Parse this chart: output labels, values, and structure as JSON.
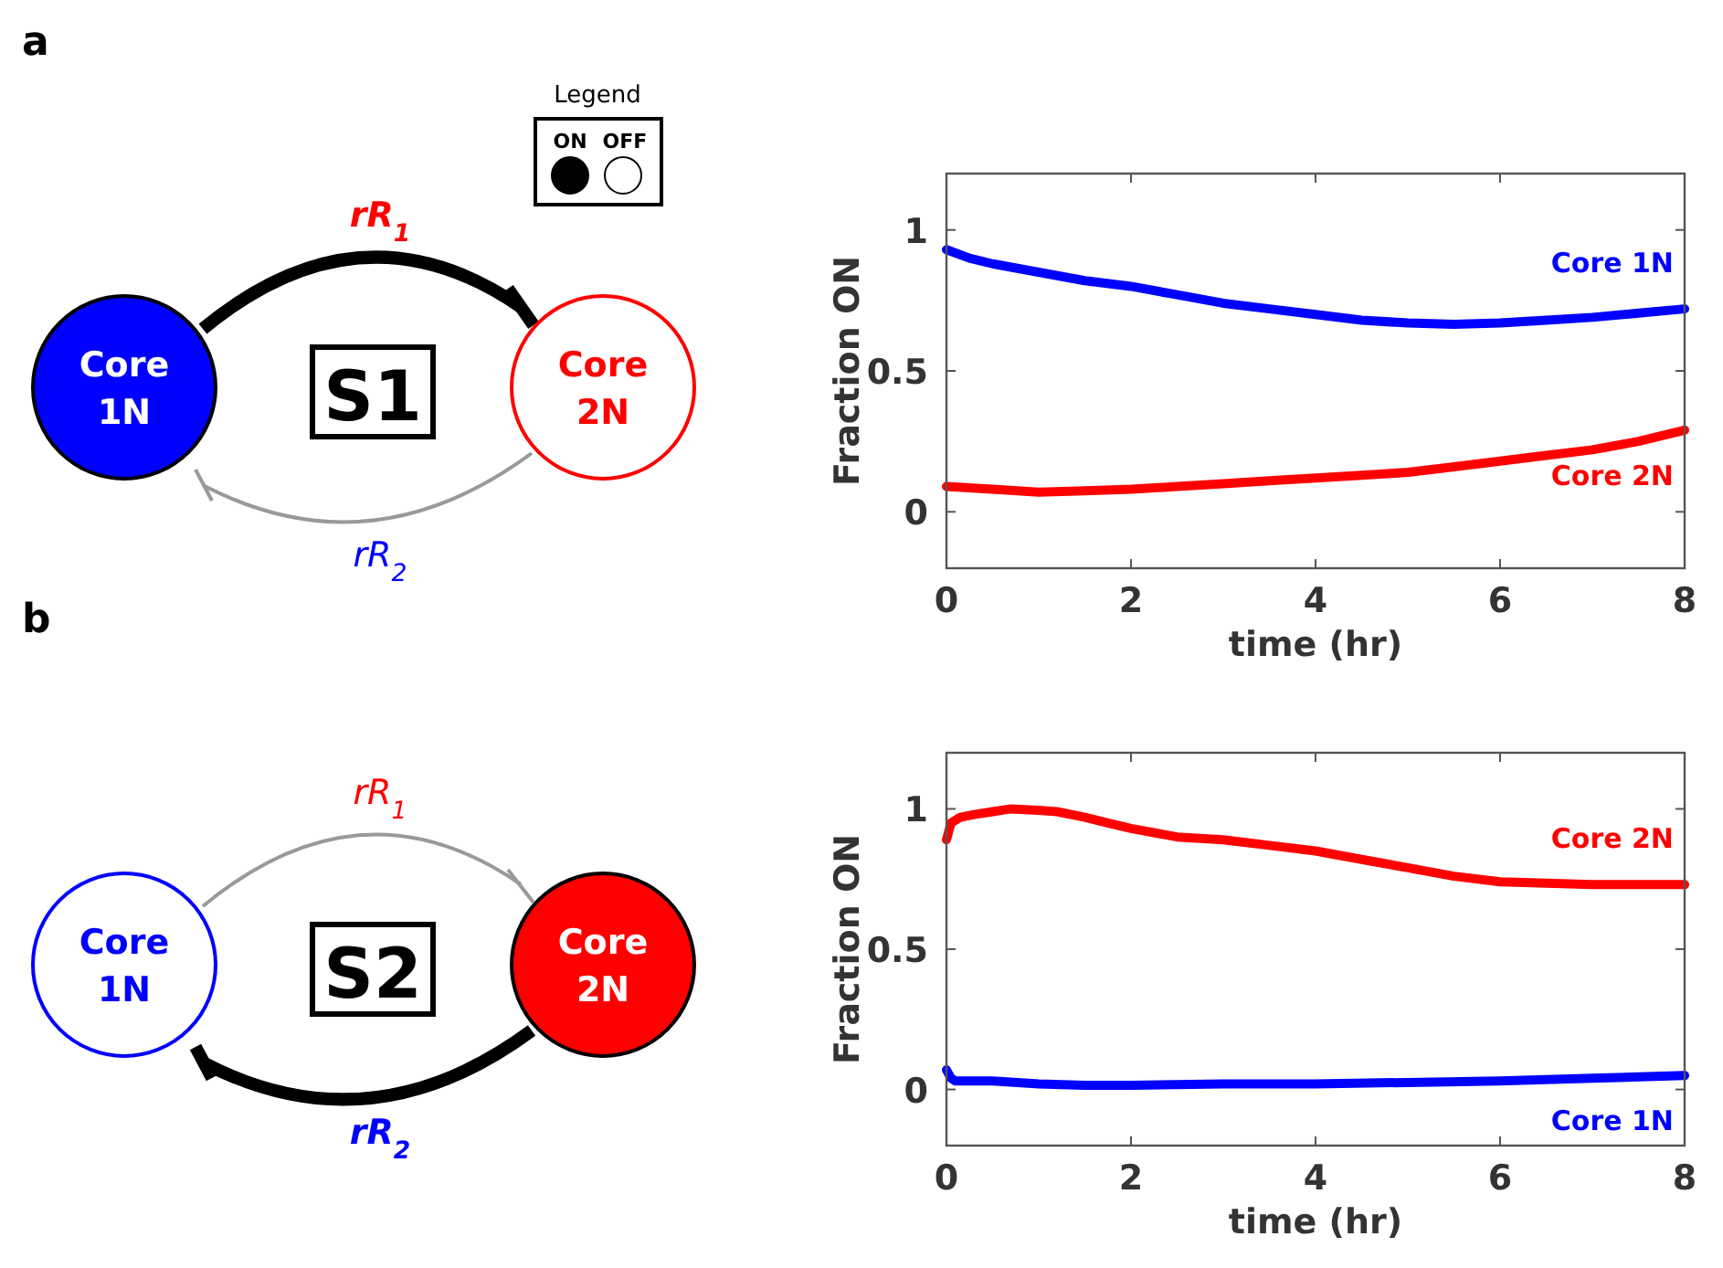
{
  "chart_data": [
    {
      "type": "other",
      "title": "a",
      "annotations": [
        "Legend",
        "ON",
        "OFF",
        "Core 1N",
        "Core 2N",
        "S1",
        "rR$_{1}$",
        "rR$_{2}$"
      ]
    },
    {
      "type": "line",
      "xlabel": "time (hr)",
      "ylabel": "Fraction ON",
      "xlim": [
        0,
        8
      ],
      "xticks": [
        0,
        2,
        4,
        6,
        8
      ],
      "ylim": [
        -0.2,
        1.2
      ],
      "yticks": [
        0,
        0.5,
        1
      ],
      "series": [
        {
          "name": "Core 1N",
          "color": "#0000ff",
          "x": [
            0,
            0.25,
            0.5,
            1,
            1.5,
            2,
            2.5,
            3,
            3.5,
            4,
            4.5,
            5,
            5.5,
            6,
            6.5,
            7,
            7.5,
            8
          ],
          "values": [
            0.93,
            0.9,
            0.88,
            0.85,
            0.82,
            0.8,
            0.77,
            0.74,
            0.72,
            0.7,
            0.68,
            0.67,
            0.665,
            0.67,
            0.68,
            0.69,
            0.705,
            0.72
          ]
        },
        {
          "name": "Core 2N",
          "color": "#ff0000",
          "x": [
            0,
            0.25,
            0.5,
            1,
            1.5,
            2,
            2.5,
            3,
            3.5,
            4,
            4.5,
            5,
            5.5,
            6,
            6.5,
            7,
            7.5,
            8
          ],
          "values": [
            0.09,
            0.085,
            0.08,
            0.07,
            0.075,
            0.08,
            0.09,
            0.1,
            0.11,
            0.12,
            0.13,
            0.14,
            0.16,
            0.18,
            0.2,
            0.22,
            0.25,
            0.29
          ]
        }
      ]
    },
    {
      "type": "other",
      "title": "b",
      "annotations": [
        "Core 1N",
        "Core 2N",
        "S2",
        "rR$_{1}$",
        "rR$_{2}$"
      ]
    },
    {
      "type": "line",
      "xlabel": "time (hr)",
      "ylabel": "Fraction ON",
      "xlim": [
        0,
        8
      ],
      "xticks": [
        0,
        2,
        4,
        6,
        8
      ],
      "ylim": [
        -0.2,
        1.2
      ],
      "yticks": [
        0,
        0.5,
        1
      ],
      "series": [
        {
          "name": "Core 2N",
          "color": "#ff0000",
          "x": [
            0,
            0.05,
            0.15,
            0.3,
            0.5,
            0.7,
            1,
            1.2,
            1.5,
            1.75,
            2,
            2.5,
            3,
            3.5,
            4,
            4.5,
            5,
            5.5,
            6,
            6.5,
            7,
            7.5,
            8
          ],
          "values": [
            0.89,
            0.95,
            0.97,
            0.98,
            0.99,
            1.0,
            0.995,
            0.99,
            0.97,
            0.95,
            0.93,
            0.9,
            0.89,
            0.87,
            0.85,
            0.82,
            0.79,
            0.76,
            0.74,
            0.735,
            0.73,
            0.73,
            0.73
          ]
        },
        {
          "name": "Core 1N",
          "color": "#0000ff",
          "x": [
            0,
            0.05,
            0.1,
            0.5,
            1,
            1.5,
            2,
            3,
            4,
            5,
            6,
            7,
            8
          ],
          "values": [
            0.07,
            0.04,
            0.03,
            0.03,
            0.02,
            0.015,
            0.015,
            0.02,
            0.02,
            0.025,
            0.03,
            0.04,
            0.05
          ]
        }
      ]
    }
  ]
}
